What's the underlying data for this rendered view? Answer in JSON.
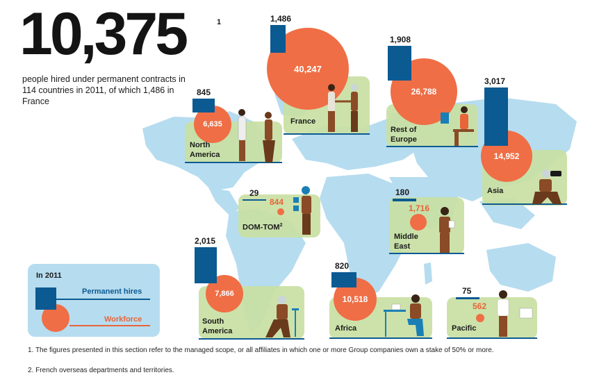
{
  "headline": {
    "value": "10,375",
    "footnote_mark": "1"
  },
  "subtitle": "people hired under permanent contracts in 114 countries in 2011, of which 1,486 in France",
  "colors": {
    "hires_bar": "#0b5a92",
    "workforce_circle": "#ef6e45",
    "panel": "#c9e0a3",
    "map": "#b6dcef"
  },
  "regions": [
    {
      "id": "france",
      "name": "France",
      "hires": "1,486",
      "workforce": "40,247"
    },
    {
      "id": "rest-of-europe",
      "name": "Rest of\nEurope",
      "hires": "1,908",
      "workforce": "26,788"
    },
    {
      "id": "north-america",
      "name": "North\nAmerica",
      "hires": "845",
      "workforce": "6,635"
    },
    {
      "id": "asia",
      "name": "Asia",
      "hires": "3,017",
      "workforce": "14,952"
    },
    {
      "id": "dom-tom",
      "name": "DOM-TOM",
      "name_sup": "2",
      "hires": "29",
      "workforce": "844"
    },
    {
      "id": "middle-east",
      "name": "Middle\nEast",
      "hires": "180",
      "workforce": "1,716"
    },
    {
      "id": "south-america",
      "name": "South\nAmerica",
      "hires": "2,015",
      "workforce": "7,866"
    },
    {
      "id": "africa",
      "name": "Africa",
      "hires": "820",
      "workforce": "10,518"
    },
    {
      "id": "pacific",
      "name": "Pacific",
      "hires": "75",
      "workforce": "562"
    }
  ],
  "legend": {
    "title": "In 2011",
    "permanent": "Permanent hires",
    "workforce": "Workforce"
  },
  "footnotes": [
    "1. The figures presented in this section refer to the managed scope, or all affiliates in which one or more Group companies own a stake of 50% or more.",
    "2. French overseas departments and territories."
  ]
}
